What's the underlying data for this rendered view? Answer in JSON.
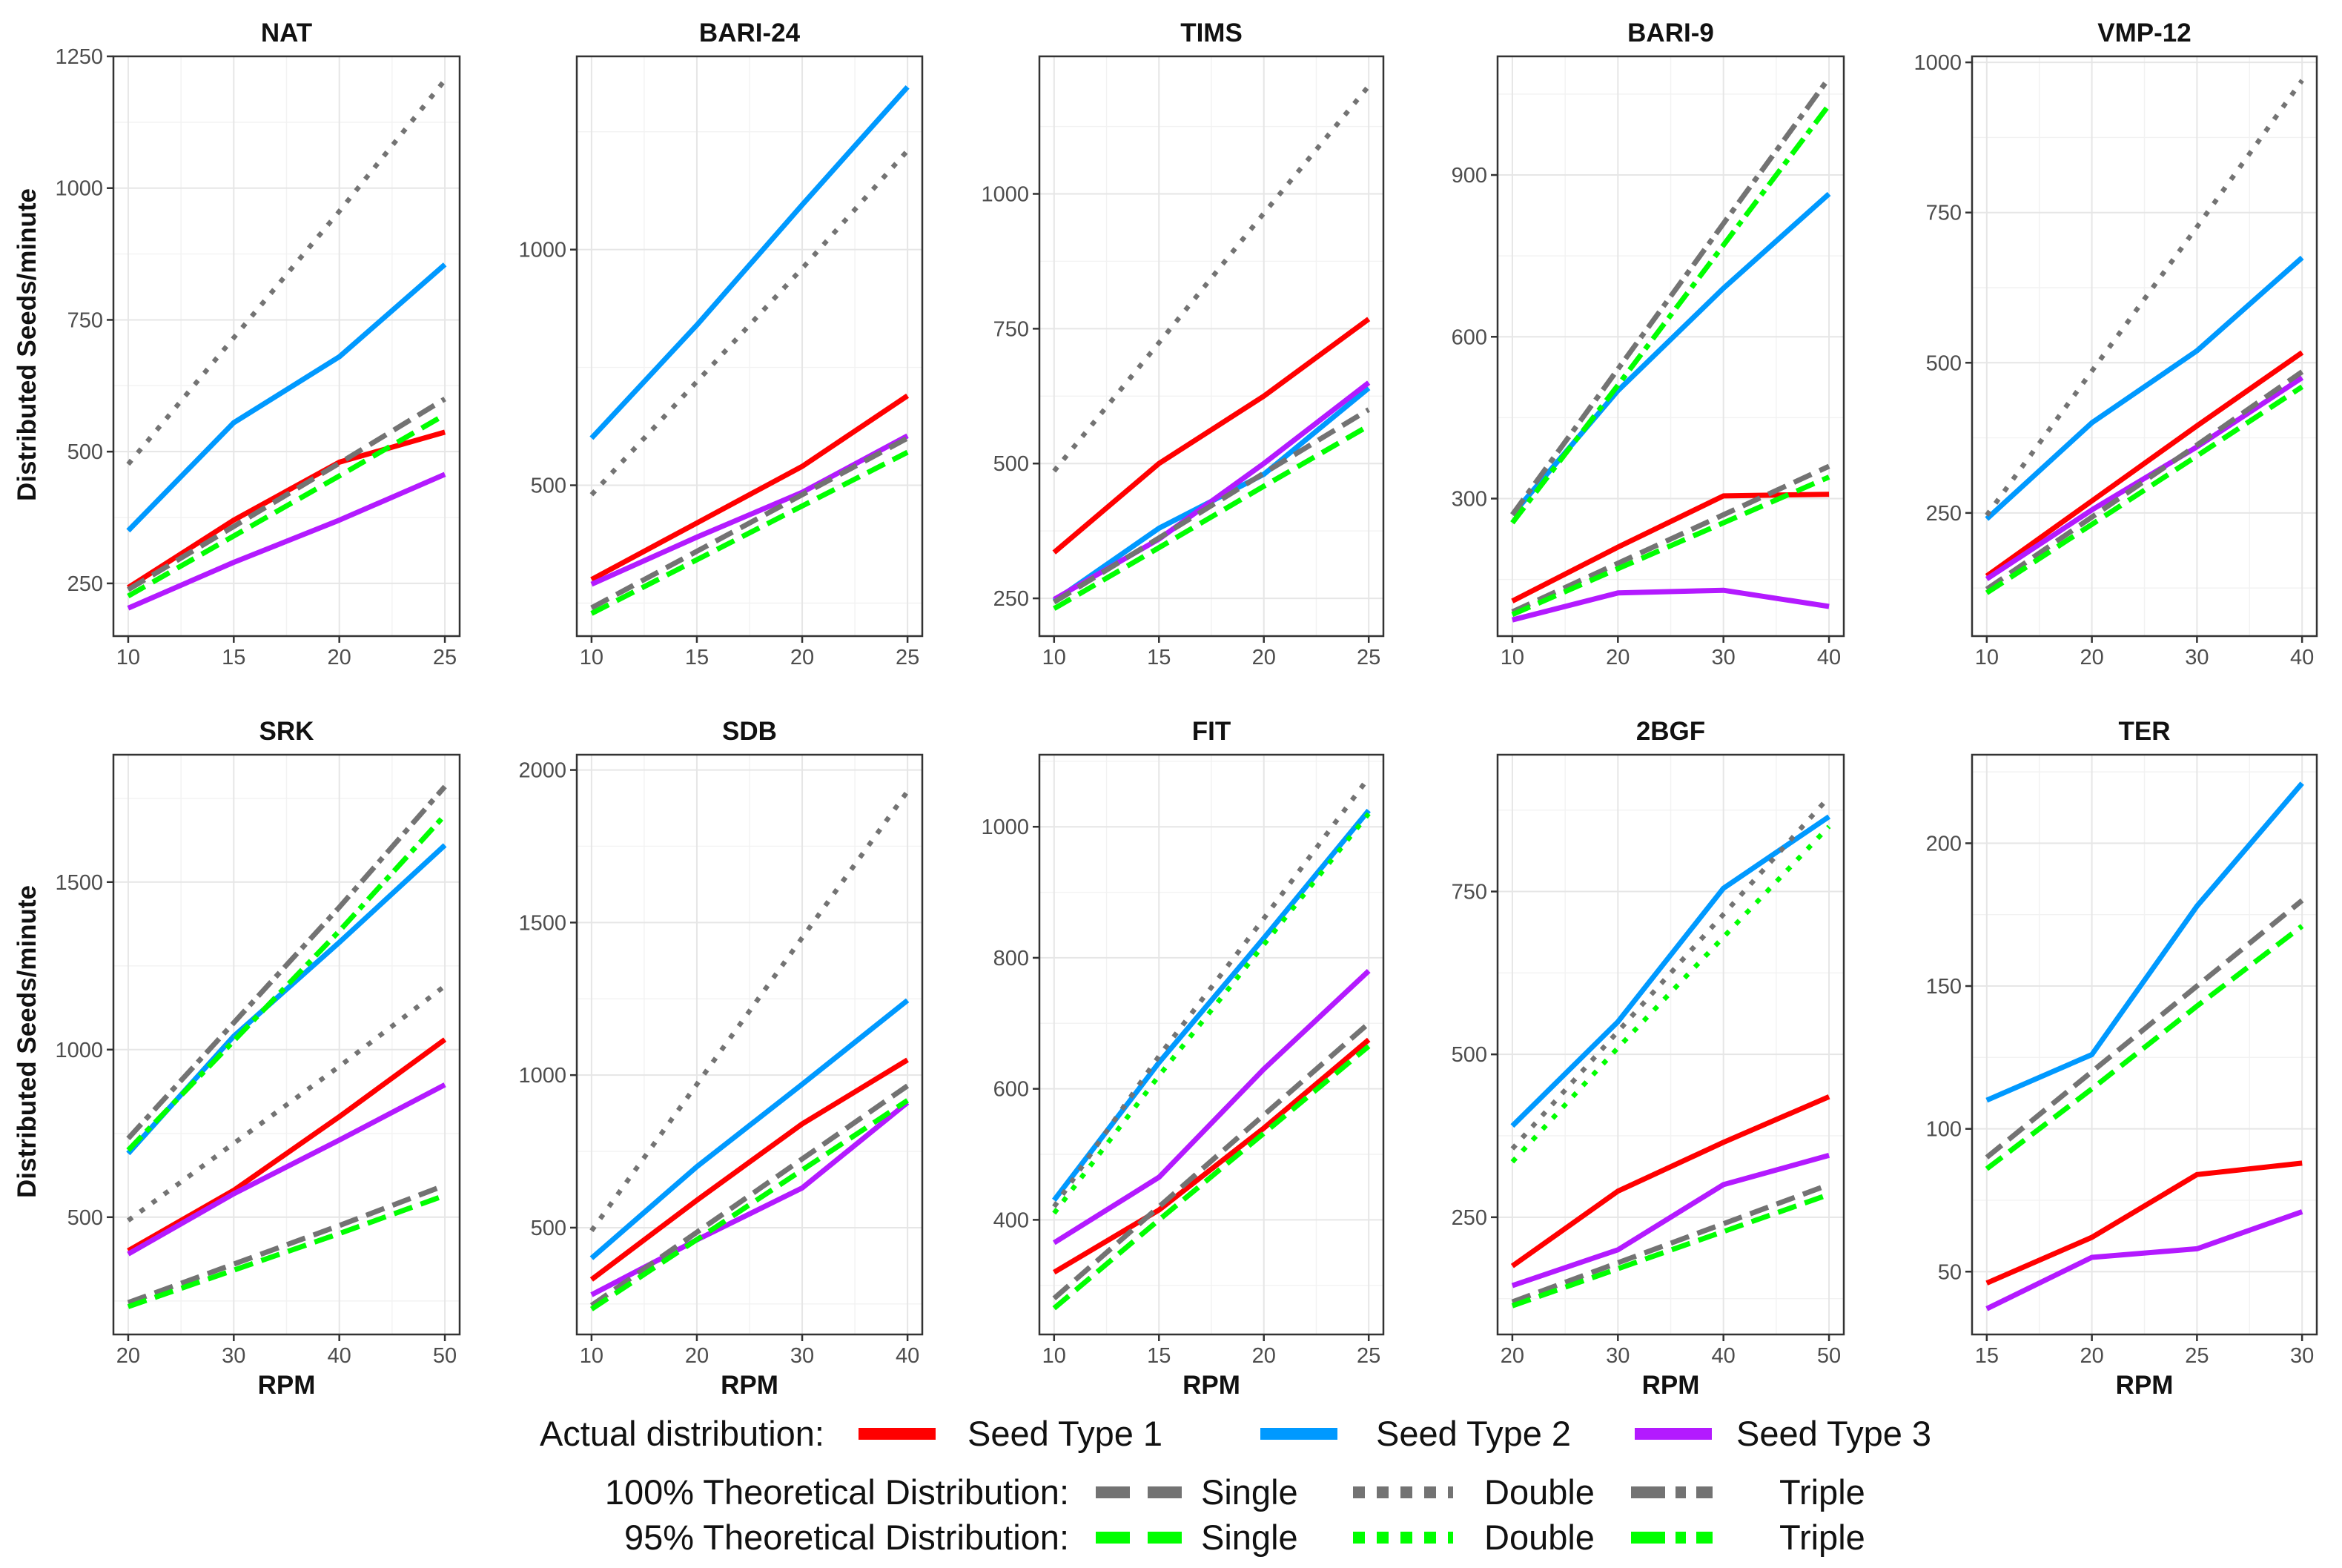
{
  "colors": {
    "seed1": "#ff0000",
    "seed2": "#0099ff",
    "seed3": "#b31aff",
    "theo100": "#737373",
    "theo95": "#00ff00"
  },
  "axes": {
    "x_title": "RPM",
    "y_title": "Distributed Seeds/minute"
  },
  "legend": {
    "actual_label": "Actual distribution:",
    "seed_type_1": "Seed Type 1",
    "seed_type_2": "Seed Type 2",
    "seed_type_3": "Seed Type 3",
    "theo100_label": "100% Theoretical Distribution:",
    "theo95_label": "95% Theoretical Distribution:",
    "single": "Single",
    "double": "Double",
    "triple": "Triple"
  },
  "chart_data": [
    {
      "type": "line",
      "title": "NAT",
      "xlabel": "",
      "ylabel": "Distributed Seeds/minute",
      "x": [
        10,
        15,
        20,
        25
      ],
      "xlim": [
        9.3,
        25.7
      ],
      "ylim": [
        150,
        1250
      ],
      "xticks": [
        10,
        15,
        20,
        25
      ],
      "yticks": [
        250,
        500,
        750,
        1000,
        1250
      ],
      "series": [
        {
          "name": "Seed Type 1",
          "style": "seed1",
          "values": [
            242,
            370,
            480,
            537
          ]
        },
        {
          "name": "Seed Type 2",
          "style": "seed2",
          "values": [
            350,
            555,
            680,
            855
          ]
        },
        {
          "name": "Seed Type 3",
          "style": "seed3",
          "values": [
            203,
            290,
            370,
            457
          ]
        },
        {
          "name": "100% Single",
          "style": "single100",
          "values": [
            238,
            358,
            478,
            600
          ]
        },
        {
          "name": "100% Double",
          "style": "double100",
          "values": [
            476,
            716,
            956,
            1205
          ]
        },
        {
          "name": "95% Single",
          "style": "single95",
          "values": [
            226,
            340,
            454,
            570
          ]
        }
      ]
    },
    {
      "type": "line",
      "title": "BARI-24",
      "xlabel": "",
      "ylabel": "",
      "x": [
        10,
        15,
        20,
        25
      ],
      "xlim": [
        9.3,
        25.7
      ],
      "ylim": [
        180,
        1410
      ],
      "xticks": [
        10,
        15,
        20,
        25
      ],
      "yticks": [
        500,
        1000
      ],
      "series": [
        {
          "name": "Seed Type 1",
          "style": "seed1",
          "values": [
            300,
            420,
            540,
            690
          ]
        },
        {
          "name": "Seed Type 2",
          "style": "seed2",
          "values": [
            600,
            840,
            1095,
            1345
          ]
        },
        {
          "name": "Seed Type 3",
          "style": "seed3",
          "values": [
            290,
            390,
            485,
            605
          ]
        },
        {
          "name": "100% Single",
          "style": "single100",
          "values": [
            240,
            360,
            480,
            600
          ]
        },
        {
          "name": "100% Double",
          "style": "double100",
          "values": [
            480,
            720,
            960,
            1210
          ]
        },
        {
          "name": "95% Single",
          "style": "single95",
          "values": [
            228,
            342,
            456,
            570
          ]
        }
      ]
    },
    {
      "type": "line",
      "title": "TIMS",
      "xlabel": "",
      "ylabel": "",
      "x": [
        10,
        15,
        20,
        25
      ],
      "xlim": [
        9.3,
        25.7
      ],
      "ylim": [
        180,
        1255
      ],
      "xticks": [
        10,
        15,
        20,
        25
      ],
      "yticks": [
        250,
        500,
        750,
        1000
      ],
      "series": [
        {
          "name": "Seed Type 1",
          "style": "seed1",
          "values": [
            335,
            500,
            625,
            768
          ]
        },
        {
          "name": "Seed Type 2",
          "style": "seed2",
          "values": [
            245,
            380,
            480,
            640
          ]
        },
        {
          "name": "Seed Type 3",
          "style": "seed3",
          "values": [
            248,
            360,
            500,
            650
          ]
        },
        {
          "name": "100% Single",
          "style": "single100",
          "values": [
            243,
            362,
            482,
            600
          ]
        },
        {
          "name": "100% Double",
          "style": "double100",
          "values": [
            486,
            724,
            964,
            1200
          ]
        },
        {
          "name": "95% Single",
          "style": "single95",
          "values": [
            231,
            344,
            458,
            570
          ]
        }
      ]
    },
    {
      "type": "line",
      "title": "BARI-9",
      "xlabel": "",
      "ylabel": "",
      "x": [
        10,
        20,
        30,
        40
      ],
      "xlim": [
        8.6,
        41.4
      ],
      "ylim": [
        45,
        1120
      ],
      "xticks": [
        10,
        20,
        30,
        40
      ],
      "yticks": [
        300,
        600,
        900
      ],
      "series": [
        {
          "name": "Seed Type 1",
          "style": "seed1",
          "values": [
            110,
            210,
            305,
            308
          ]
        },
        {
          "name": "Seed Type 2",
          "style": "seed2",
          "values": [
            270,
            500,
            690,
            865
          ]
        },
        {
          "name": "Seed Type 3",
          "style": "seed3",
          "values": [
            75,
            125,
            130,
            100
          ]
        },
        {
          "name": "100% Single",
          "style": "single100",
          "values": [
            90,
            180,
            270,
            360
          ]
        },
        {
          "name": "100% Triple",
          "style": "triple100",
          "values": [
            270,
            540,
            810,
            1080
          ]
        },
        {
          "name": "95% Single",
          "style": "single95",
          "values": [
            85,
            170,
            255,
            340
          ]
        },
        {
          "name": "95% Triple",
          "style": "triple95",
          "values": [
            255,
            510,
            770,
            1030
          ]
        }
      ]
    },
    {
      "type": "line",
      "title": "VMP-12",
      "xlabel": "",
      "ylabel": "",
      "x": [
        10,
        20,
        30,
        40
      ],
      "xlim": [
        8.6,
        41.4
      ],
      "ylim": [
        45,
        1010
      ],
      "xticks": [
        10,
        20,
        30,
        40
      ],
      "yticks": [
        250,
        500,
        750,
        1000
      ],
      "series": [
        {
          "name": "Seed Type 1",
          "style": "seed1",
          "values": [
            145,
            270,
            395,
            517
          ]
        },
        {
          "name": "Seed Type 2",
          "style": "seed2",
          "values": [
            240,
            400,
            520,
            675
          ]
        },
        {
          "name": "Seed Type 3",
          "style": "seed3",
          "values": [
            140,
            255,
            360,
            475
          ]
        },
        {
          "name": "100% Single",
          "style": "single100",
          "values": [
            123,
            243,
            363,
            485
          ]
        },
        {
          "name": "100% Double",
          "style": "double100",
          "values": [
            246,
            486,
            726,
            970
          ]
        },
        {
          "name": "95% Single",
          "style": "single95",
          "values": [
            117,
            231,
            345,
            460
          ]
        }
      ]
    },
    {
      "type": "line",
      "title": "SRK",
      "xlabel": "RPM",
      "ylabel": "Distributed Seeds/minute",
      "x": [
        20,
        30,
        40,
        50
      ],
      "xlim": [
        18.6,
        51.4
      ],
      "ylim": [
        150,
        1880
      ],
      "xticks": [
        20,
        30,
        40,
        50
      ],
      "yticks": [
        500,
        1000,
        1500
      ],
      "series": [
        {
          "name": "Seed Type 1",
          "style": "seed1",
          "values": [
            400,
            580,
            800,
            1030
          ]
        },
        {
          "name": "Seed Type 2",
          "style": "seed2",
          "values": [
            690,
            1040,
            1320,
            1610
          ]
        },
        {
          "name": "Seed Type 3",
          "style": "seed3",
          "values": [
            390,
            570,
            730,
            895
          ]
        },
        {
          "name": "100% Single",
          "style": "single100",
          "values": [
            245,
            360,
            475,
            595
          ]
        },
        {
          "name": "100% Double",
          "style": "double100",
          "values": [
            490,
            720,
            950,
            1190
          ]
        },
        {
          "name": "100% Triple",
          "style": "triple100",
          "values": [
            735,
            1080,
            1425,
            1785
          ]
        },
        {
          "name": "95% Single",
          "style": "single95",
          "values": [
            233,
            342,
            451,
            565
          ]
        },
        {
          "name": "95% Triple",
          "style": "triple95",
          "values": [
            700,
            1026,
            1354,
            1700
          ]
        }
      ]
    },
    {
      "type": "line",
      "title": "SDB",
      "xlabel": "RPM",
      "ylabel": "",
      "x": [
        10,
        20,
        30,
        40
      ],
      "xlim": [
        8.6,
        41.4
      ],
      "ylim": [
        150,
        2050
      ],
      "xticks": [
        10,
        20,
        30,
        40
      ],
      "yticks": [
        500,
        1000,
        1500,
        2000
      ],
      "series": [
        {
          "name": "Seed Type 1",
          "style": "seed1",
          "values": [
            330,
            590,
            840,
            1050
          ]
        },
        {
          "name": "Seed Type 2",
          "style": "seed2",
          "values": [
            400,
            700,
            970,
            1245
          ]
        },
        {
          "name": "Seed Type 3",
          "style": "seed3",
          "values": [
            280,
            460,
            630,
            910
          ]
        },
        {
          "name": "100% Single",
          "style": "single100",
          "values": [
            245,
            485,
            725,
            965
          ]
        },
        {
          "name": "100% Double",
          "style": "double100",
          "values": [
            490,
            970,
            1450,
            1930
          ]
        },
        {
          "name": "95% Single",
          "style": "single95",
          "values": [
            233,
            461,
            689,
            917
          ]
        }
      ]
    },
    {
      "type": "line",
      "title": "FIT",
      "xlabel": "RPM",
      "ylabel": "",
      "x": [
        10,
        15,
        20,
        25
      ],
      "xlim": [
        9.3,
        25.7
      ],
      "ylim": [
        225,
        1110
      ],
      "xticks": [
        10,
        15,
        20,
        25
      ],
      "yticks": [
        400,
        600,
        800,
        1000
      ],
      "series": [
        {
          "name": "Seed Type 1",
          "style": "seed1",
          "values": [
            320,
            415,
            540,
            675
          ]
        },
        {
          "name": "Seed Type 2",
          "style": "seed2",
          "values": [
            430,
            640,
            830,
            1025
          ]
        },
        {
          "name": "Seed Type 3",
          "style": "seed3",
          "values": [
            365,
            465,
            630,
            780
          ]
        },
        {
          "name": "100% Single",
          "style": "single100",
          "values": [
            280,
            420,
            560,
            700
          ]
        },
        {
          "name": "100% Double",
          "style": "double100",
          "values": [
            420,
            650,
            860,
            1075
          ]
        },
        {
          "name": "95% Single",
          "style": "single95",
          "values": [
            265,
            400,
            532,
            665
          ]
        },
        {
          "name": "95% Double",
          "style": "double95",
          "values": [
            410,
            620,
            820,
            1020
          ]
        }
      ]
    },
    {
      "type": "line",
      "title": "2BGF",
      "xlabel": "RPM",
      "ylabel": "",
      "x": [
        20,
        30,
        40,
        50
      ],
      "xlim": [
        18.6,
        51.4
      ],
      "ylim": [
        70,
        960
      ],
      "xticks": [
        20,
        30,
        40,
        50
      ],
      "yticks": [
        250,
        500,
        750
      ],
      "series": [
        {
          "name": "Seed Type 1",
          "style": "seed1",
          "values": [
            175,
            290,
            365,
            435
          ]
        },
        {
          "name": "Seed Type 2",
          "style": "seed2",
          "values": [
            390,
            550,
            755,
            865
          ]
        },
        {
          "name": "Seed Type 3",
          "style": "seed3",
          "values": [
            145,
            200,
            300,
            345
          ]
        },
        {
          "name": "100% Single",
          "style": "single100",
          "values": [
            120,
            180,
            240,
            300
          ]
        },
        {
          "name": "100% Double",
          "style": "double100",
          "values": [
            355,
            535,
            715,
            895
          ]
        },
        {
          "name": "95% Single",
          "style": "single95",
          "values": [
            114,
            171,
            228,
            285
          ]
        },
        {
          "name": "95% Double",
          "style": "double95",
          "values": [
            335,
            510,
            680,
            850
          ]
        }
      ]
    },
    {
      "type": "line",
      "title": "TER",
      "xlabel": "RPM",
      "ylabel": "",
      "x": [
        15,
        20,
        25,
        30
      ],
      "xlim": [
        14.3,
        30.7
      ],
      "ylim": [
        28,
        231
      ],
      "xticks": [
        15,
        20,
        25,
        30
      ],
      "yticks": [
        50,
        100,
        150,
        200
      ],
      "series": [
        {
          "name": "Seed Type 1",
          "style": "seed1",
          "values": [
            46,
            62,
            84,
            88
          ]
        },
        {
          "name": "Seed Type 2",
          "style": "seed2",
          "values": [
            110,
            126,
            178,
            221
          ]
        },
        {
          "name": "Seed Type 3",
          "style": "seed3",
          "values": [
            37,
            55,
            58,
            71
          ]
        },
        {
          "name": "100% Single",
          "style": "single100",
          "values": [
            90,
            120,
            150,
            180
          ]
        },
        {
          "name": "95% Single",
          "style": "single95",
          "values": [
            86,
            114,
            143,
            171
          ]
        }
      ]
    }
  ]
}
